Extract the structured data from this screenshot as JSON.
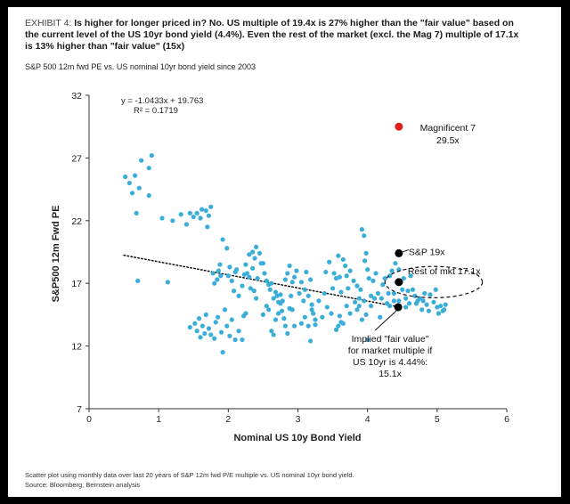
{
  "exhibit": {
    "label": "EXHIBIT 4:",
    "headline": "Is higher for longer priced in? No. US multiple of 19.4x is 27% higher than the \"fair value\" based on the current level of the US 10yr bond yield (4.4%). Even the rest of the market (excl. the Mag 7) multiple of 17.1x is 13% higher than \"fair value\" (15x)"
  },
  "subtitle": "S&P 500 12m fwd PE vs. US nominal 10yr bond yield since 2003",
  "footnote": "Scatter plot using monthly data over last 20 years of S&P 12m fwd P/E multiple vs. US nominal 10yr bond yield.",
  "source": "Source: Bloomberg, Bernstein analysis",
  "colors": {
    "scatter": "#3aaed8",
    "highlight_red": "#e02020",
    "highlight_black": "#000000",
    "axis": "#333333"
  },
  "chart_data": {
    "type": "scatter",
    "xlabel": "Nominal US 10y Bond Yield",
    "ylabel": "S&P500 12m Fwd PE",
    "xlim": [
      0,
      6
    ],
    "ylim": [
      7,
      32
    ],
    "xticks": [
      0,
      1,
      2,
      3,
      4,
      5,
      6
    ],
    "yticks": [
      7,
      12,
      17,
      22,
      27,
      32
    ],
    "trendline": {
      "slope": -1.0433,
      "intercept": 19.763,
      "x_range": [
        0.5,
        4.45
      ]
    },
    "equation_lines": [
      "y = -1.0433x + 19.763",
      "R² = 0.1719"
    ],
    "points": [
      [
        0.52,
        25.5
      ],
      [
        0.58,
        25.0
      ],
      [
        0.62,
        24.2
      ],
      [
        0.66,
        25.6
      ],
      [
        0.68,
        22.6
      ],
      [
        0.7,
        17.2
      ],
      [
        0.75,
        26.8
      ],
      [
        0.72,
        24.6
      ],
      [
        0.86,
        26.2
      ],
      [
        0.9,
        27.2
      ],
      [
        0.86,
        24.0
      ],
      [
        1.05,
        22.2
      ],
      [
        1.13,
        17.1
      ],
      [
        1.2,
        22.0
      ],
      [
        1.32,
        22.5
      ],
      [
        1.4,
        21.7
      ],
      [
        1.45,
        22.6
      ],
      [
        1.5,
        22.3
      ],
      [
        1.55,
        22.6
      ],
      [
        1.6,
        22.2
      ],
      [
        1.62,
        22.9
      ],
      [
        1.68,
        22.8
      ],
      [
        1.7,
        21.5
      ],
      [
        1.72,
        22.4
      ],
      [
        1.75,
        23.1
      ],
      [
        1.78,
        17.8
      ],
      [
        1.8,
        17.0
      ],
      [
        1.84,
        17.3
      ],
      [
        1.86,
        18.0
      ],
      [
        1.89,
        17.6
      ],
      [
        1.45,
        13.5
      ],
      [
        1.52,
        13.8
      ],
      [
        1.55,
        13.2
      ],
      [
        1.58,
        14.2
      ],
      [
        1.6,
        12.7
      ],
      [
        1.63,
        13.6
      ],
      [
        1.66,
        13.0
      ],
      [
        1.68,
        14.5
      ],
      [
        1.72,
        13.4
      ],
      [
        1.75,
        12.9
      ],
      [
        1.8,
        12.6
      ],
      [
        1.82,
        13.9
      ],
      [
        1.85,
        14.3
      ],
      [
        1.9,
        13.1
      ],
      [
        1.92,
        11.5
      ],
      [
        1.95,
        14.9
      ],
      [
        1.98,
        13.6
      ],
      [
        2.02,
        12.8
      ],
      [
        2.05,
        14.1
      ],
      [
        2.1,
        12.5
      ],
      [
        2.15,
        13.2
      ],
      [
        2.2,
        12.5
      ],
      [
        2.22,
        14.4
      ],
      [
        2.25,
        14.6
      ],
      [
        1.88,
        18.5
      ],
      [
        1.92,
        20.5
      ],
      [
        1.98,
        19.8
      ],
      [
        2.0,
        17.6
      ],
      [
        2.02,
        18.3
      ],
      [
        2.05,
        17.2
      ],
      [
        2.08,
        16.4
      ],
      [
        2.1,
        17.9
      ],
      [
        2.12,
        18.1
      ],
      [
        2.15,
        16.0
      ],
      [
        2.2,
        16.8
      ],
      [
        2.23,
        17.7
      ],
      [
        2.25,
        18.5
      ],
      [
        2.27,
        17.8
      ],
      [
        2.3,
        17.5
      ],
      [
        2.32,
        16.6
      ],
      [
        2.35,
        18.2
      ],
      [
        2.37,
        16.4
      ],
      [
        2.4,
        15.8
      ],
      [
        2.42,
        17.4
      ],
      [
        2.3,
        19.3
      ],
      [
        2.35,
        19.5
      ],
      [
        2.38,
        19.0
      ],
      [
        2.4,
        19.9
      ],
      [
        2.45,
        19.4
      ],
      [
        2.47,
        18.6
      ],
      [
        2.5,
        18.6
      ],
      [
        2.52,
        17.8
      ],
      [
        2.55,
        17.2
      ],
      [
        2.58,
        16.9
      ],
      [
        2.6,
        16.5
      ],
      [
        2.62,
        17.0
      ],
      [
        2.65,
        15.8
      ],
      [
        2.68,
        16.3
      ],
      [
        2.7,
        16.0
      ],
      [
        2.72,
        14.6
      ],
      [
        2.75,
        15.4
      ],
      [
        2.77,
        14.8
      ],
      [
        2.8,
        14.2
      ],
      [
        2.82,
        13.6
      ],
      [
        2.85,
        13.0
      ],
      [
        2.88,
        15.0
      ],
      [
        2.9,
        16.0
      ],
      [
        2.92,
        14.9
      ],
      [
        2.95,
        13.6
      ],
      [
        2.5,
        14.5
      ],
      [
        2.55,
        15.2
      ],
      [
        2.58,
        14.9
      ],
      [
        2.62,
        13.2
      ],
      [
        2.65,
        12.9
      ],
      [
        2.68,
        14.1
      ],
      [
        2.72,
        15.5
      ],
      [
        2.75,
        16.1
      ],
      [
        2.78,
        15.6
      ],
      [
        2.82,
        17.3
      ],
      [
        2.85,
        17.8
      ],
      [
        2.88,
        18.4
      ],
      [
        2.92,
        17.1
      ],
      [
        2.95,
        17.5
      ],
      [
        2.98,
        18.0
      ],
      [
        3.02,
        16.2
      ],
      [
        3.05,
        17.1
      ],
      [
        3.08,
        15.6
      ],
      [
        3.1,
        16.5
      ],
      [
        3.12,
        17.9
      ],
      [
        3.15,
        16.0
      ],
      [
        3.18,
        17.3
      ],
      [
        3.2,
        15.3
      ],
      [
        3.22,
        14.6
      ],
      [
        3.25,
        14.1
      ],
      [
        3.05,
        13.8
      ],
      [
        3.1,
        14.3
      ],
      [
        3.15,
        13.6
      ],
      [
        3.18,
        12.4
      ],
      [
        3.2,
        14.9
      ],
      [
        3.25,
        13.7
      ],
      [
        3.3,
        15.6
      ],
      [
        3.35,
        14.3
      ],
      [
        3.4,
        17.9
      ],
      [
        3.45,
        18.7
      ],
      [
        3.5,
        16.6
      ],
      [
        3.52,
        17.8
      ],
      [
        3.55,
        17.4
      ],
      [
        3.58,
        19.2
      ],
      [
        3.6,
        17.5
      ],
      [
        3.62,
        16.3
      ],
      [
        3.65,
        18.9
      ],
      [
        3.68,
        18.4
      ],
      [
        3.7,
        17.6
      ],
      [
        3.72,
        16.6
      ],
      [
        3.75,
        18.0
      ],
      [
        3.6,
        14.4
      ],
      [
        3.65,
        13.8
      ],
      [
        3.7,
        15.2
      ],
      [
        3.75,
        14.6
      ],
      [
        3.38,
        16.2
      ],
      [
        3.42,
        15.1
      ],
      [
        3.48,
        14.6
      ],
      [
        3.55,
        13.3
      ],
      [
        3.58,
        13.6
      ],
      [
        3.62,
        13.9
      ],
      [
        3.8,
        17.2
      ],
      [
        3.82,
        15.5
      ],
      [
        3.85,
        16.8
      ],
      [
        3.88,
        15.8
      ],
      [
        3.9,
        16.5
      ],
      [
        3.92,
        21.3
      ],
      [
        3.95,
        20.8
      ],
      [
        3.96,
        18.8
      ],
      [
        3.98,
        19.4
      ],
      [
        4.0,
        18.1
      ],
      [
        4.02,
        17.4
      ],
      [
        4.05,
        16.0
      ],
      [
        3.85,
        14.9
      ],
      [
        3.88,
        15.2
      ],
      [
        3.92,
        14.1
      ],
      [
        3.95,
        15.6
      ],
      [
        3.98,
        14.5
      ],
      [
        4.0,
        12.5
      ],
      [
        4.05,
        15.2
      ],
      [
        4.08,
        17.2
      ],
      [
        4.1,
        15.8
      ],
      [
        4.12,
        17.8
      ],
      [
        4.15,
        16.2
      ],
      [
        4.18,
        14.3
      ],
      [
        4.2,
        15.8
      ],
      [
        4.22,
        16.9
      ],
      [
        4.25,
        17.4
      ],
      [
        4.28,
        15.4
      ],
      [
        4.3,
        16.2
      ],
      [
        4.32,
        17.6
      ],
      [
        4.35,
        18.0
      ],
      [
        4.38,
        16.2
      ],
      [
        4.4,
        18.6
      ],
      [
        4.42,
        17.1
      ],
      [
        4.45,
        18.1
      ],
      [
        4.48,
        17.1
      ],
      [
        4.5,
        16.5
      ],
      [
        4.52,
        17.4
      ],
      [
        4.55,
        15.8
      ],
      [
        4.58,
        16.4
      ],
      [
        4.6,
        15.4
      ],
      [
        4.62,
        17.6
      ],
      [
        4.65,
        16.5
      ],
      [
        4.32,
        15.2
      ],
      [
        4.38,
        15.6
      ],
      [
        4.45,
        15.6
      ],
      [
        4.55,
        15.1
      ],
      [
        4.68,
        16.0
      ],
      [
        4.7,
        15.4
      ],
      [
        4.72,
        15.6
      ],
      [
        4.75,
        15.8
      ],
      [
        4.78,
        14.9
      ],
      [
        4.8,
        15.6
      ],
      [
        4.82,
        16.2
      ],
      [
        4.85,
        15.3
      ],
      [
        4.88,
        14.8
      ],
      [
        4.9,
        16.1
      ],
      [
        4.95,
        15.5
      ],
      [
        5.0,
        15.1
      ],
      [
        5.02,
        14.6
      ],
      [
        5.05,
        15.2
      ],
      [
        5.1,
        14.9
      ],
      [
        4.98,
        16.5
      ],
      [
        5.08,
        14.8
      ],
      [
        5.12,
        15.3
      ]
    ],
    "highlights": [
      {
        "x": 4.45,
        "y": 29.5,
        "color": "#e02020",
        "label_lines": [
          "Magnificent 7",
          "29.5x"
        ]
      },
      {
        "x": 4.45,
        "y": 19.4,
        "color": "#000000",
        "label_lines": [
          "S&P 19x"
        ]
      },
      {
        "x": 4.45,
        "y": 17.1,
        "color": "#000000",
        "label_lines": [
          "Rest of mkt 17.1x"
        ]
      },
      {
        "x": 4.44,
        "y": 15.1,
        "color": "#000000",
        "label_lines": [
          "Implied \"fair value\"",
          "for market multiple if",
          "US 10yr is 4.44%:",
          "15.1x"
        ]
      }
    ],
    "ellipse_around": {
      "cx": 4.95,
      "cy": 17.1,
      "rx": 0.7,
      "ry": 1.25
    }
  }
}
